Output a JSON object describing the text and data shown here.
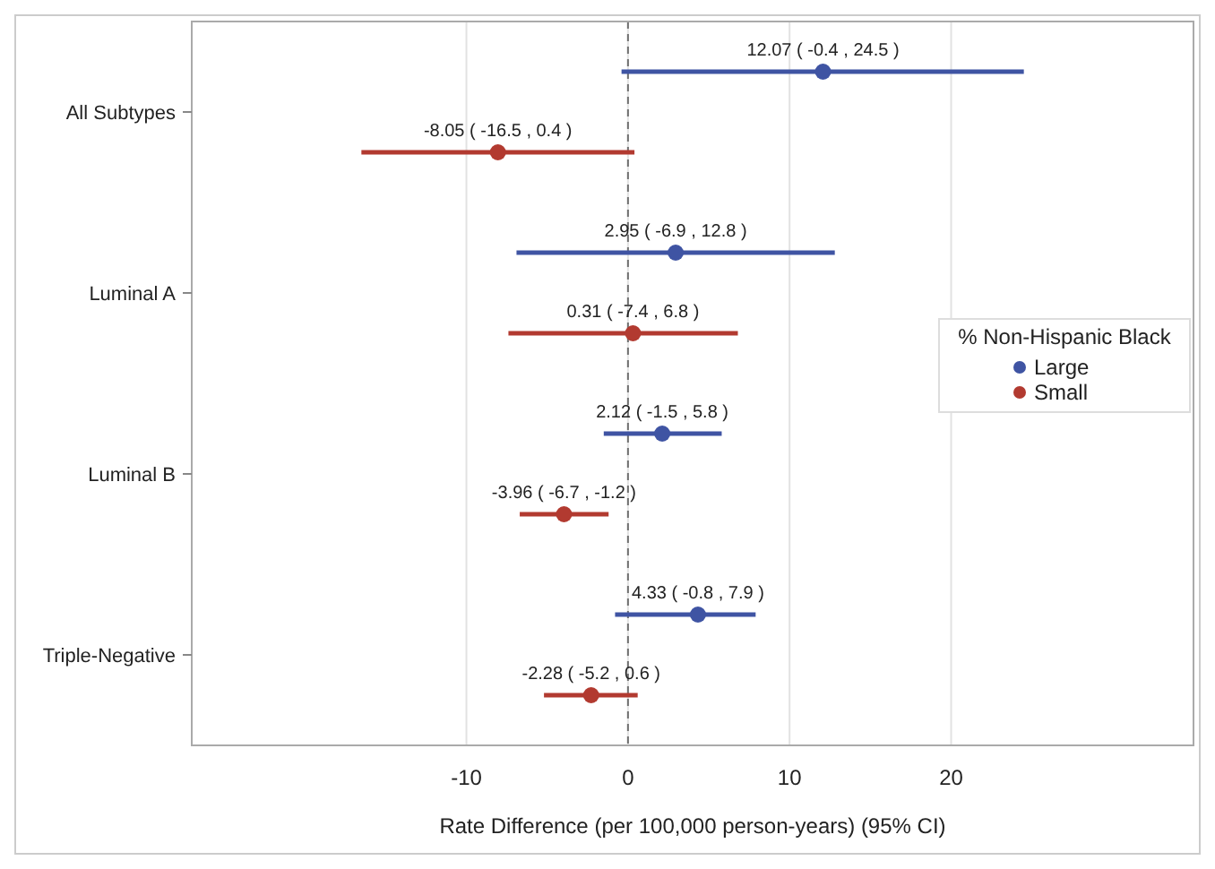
{
  "chart_data": {
    "type": "scatter",
    "orientation": "horizontal",
    "xlabel": "Rate Difference (per 100,000 person-years) (95% CI)",
    "legend_title": "% Non-Hispanic Black",
    "legend": "right",
    "grid": "x",
    "marker": "circle",
    "categories": [
      "All Subtypes",
      "Luminal A",
      "Luminal B",
      "Triple-Negative"
    ],
    "xlim": [
      -27,
      35
    ],
    "xticks": [
      -10,
      0,
      10,
      20
    ],
    "ref_lines": [
      {
        "axis": "x",
        "value": 0,
        "color": "#707070",
        "line_style": "dashed"
      }
    ],
    "series": [
      {
        "name": "Large",
        "color": "#3f54a3",
        "values": [
          12.07,
          2.95,
          2.12,
          4.33
        ],
        "errors": [
          [
            -0.4,
            24.5
          ],
          [
            -6.9,
            12.8
          ],
          [
            -1.5,
            5.8
          ],
          [
            -0.8,
            7.9
          ]
        ],
        "value_labels": [
          "12.07 ( -0.4 , 24.5 )",
          "2.95 ( -6.9 , 12.8 )",
          "2.12 ( -1.5 , 5.8 )",
          "4.33 ( -0.8 , 7.9 )"
        ]
      },
      {
        "name": "Small",
        "color": "#b23a30",
        "values": [
          -8.05,
          0.31,
          -3.96,
          -2.28
        ],
        "errors": [
          [
            -16.5,
            0.4
          ],
          [
            -7.4,
            6.8
          ],
          [
            -6.7,
            -1.2
          ],
          [
            -5.2,
            0.6
          ]
        ],
        "value_labels": [
          "-8.05 ( -16.5 , 0.4 )",
          "0.31 ( -7.4 , 6.8 )",
          "-3.96 ( -6.7 , -1.2 )",
          "-2.28 ( -5.2 , 0.6 )"
        ]
      }
    ]
  }
}
